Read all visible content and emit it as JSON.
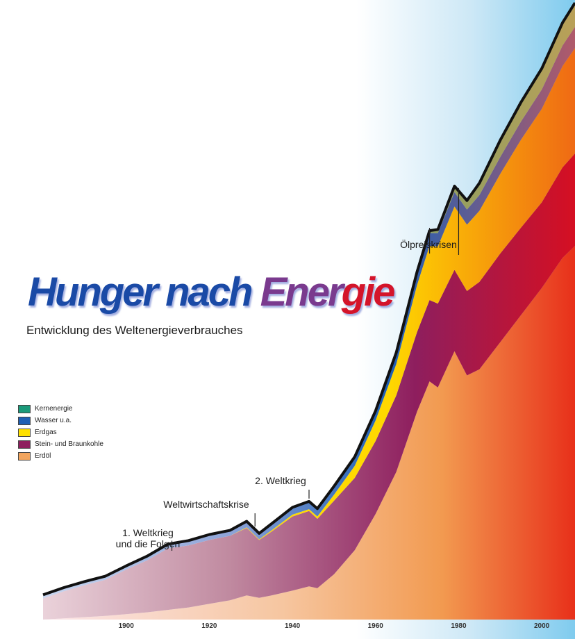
{
  "header": {
    "title_part1": "Hunger nach",
    "title_part2": "Ener",
    "title_part3": "gie",
    "subtitle": "Entwicklung des Weltenergieverbrauches"
  },
  "colors": {
    "sky": "#7fcbee",
    "kernenergie": "#1a9a7a",
    "wasser": "#1e5fb4",
    "erdgas": "#ffe100",
    "kohle": "#8e1e5e",
    "erdoel": "#f2a55e",
    "title_blue": "#1a4aa6",
    "title_red": "#d4142a"
  },
  "legend": [
    {
      "label": "Kernenergie",
      "color": "#1a9a7a"
    },
    {
      "label": "Wasser u.a.",
      "color": "#1e5fb4"
    },
    {
      "label": "Erdgas",
      "color": "#ffe100"
    },
    {
      "label": "Stein- und Braunkohle",
      "color": "#8e1e5e"
    },
    {
      "label": "Erdöl",
      "color": "#f2a55e"
    }
  ],
  "annotations": [
    {
      "lines": [
        "1. Weltkrieg",
        "und die Folgen"
      ],
      "year": 1911
    },
    {
      "lines": [
        "Weltwirtschaftskrise"
      ],
      "year": 1931
    },
    {
      "lines": [
        "2. Weltkrieg"
      ],
      "year": 1944
    },
    {
      "lines": [
        "Ölpreiskrisen"
      ],
      "year": 1973,
      "year2": 1980
    }
  ],
  "chart_data": {
    "type": "area",
    "stacked": true,
    "title": "Hunger nach Energie",
    "subtitle": "Entwicklung des Weltenergieverbrauches",
    "xlabel": "",
    "ylabel": "",
    "xlim": [
      1880,
      2008
    ],
    "ylim": [
      0,
      100
    ],
    "x_ticks": [
      1900,
      1920,
      1940,
      1960,
      1980,
      2000
    ],
    "x": [
      1880,
      1885,
      1890,
      1895,
      1900,
      1905,
      1910,
      1915,
      1920,
      1925,
      1929,
      1932,
      1935,
      1940,
      1944,
      1946,
      1950,
      1955,
      1960,
      1965,
      1970,
      1973,
      1975,
      1979,
      1982,
      1985,
      1990,
      1995,
      2000,
      2005,
      2008
    ],
    "series": [
      {
        "name": "Erdöl",
        "values": [
          0,
          0.2,
          0.4,
          0.6,
          0.9,
          1.2,
          1.6,
          2.0,
          2.6,
          3.2,
          4.0,
          3.6,
          4.0,
          4.8,
          5.5,
          5.2,
          7.5,
          11.5,
          17.5,
          24.5,
          34.5,
          39.5,
          38.5,
          44.5,
          40.5,
          41.5,
          46.0,
          50.5,
          55.0,
          60.0,
          62.0
        ]
      },
      {
        "name": "Stein- und Braunkohle",
        "values": [
          3.5,
          4.5,
          5.3,
          6.0,
          7.4,
          8.6,
          10.2,
          10.3,
          10.6,
          10.7,
          11.2,
          9.6,
          10.6,
          12.3,
          12.5,
          11.5,
          12.2,
          12.0,
          12.1,
          12.7,
          13.2,
          13.5,
          13.9,
          13.5,
          14.0,
          14.5,
          14.7,
          14.5,
          14.2,
          15.0,
          15.3
        ]
      },
      {
        "name": "Erdgas",
        "values": [
          0,
          0,
          0,
          0,
          0,
          0,
          0,
          0,
          0,
          0,
          0.1,
          0.1,
          0.2,
          0.3,
          0.3,
          0.4,
          1.0,
          2.0,
          3.4,
          5.2,
          7.8,
          9.0,
          9.5,
          10.5,
          11.0,
          11.8,
          13.2,
          14.6,
          15.5,
          16.8,
          17.5
        ]
      },
      {
        "name": "Wasser u.a.",
        "values": [
          0.6,
          0.6,
          0.6,
          0.6,
          0.6,
          0.7,
          0.7,
          0.8,
          0.9,
          0.9,
          1.0,
          1.0,
          1.1,
          1.2,
          1.3,
          1.3,
          1.4,
          1.5,
          1.6,
          1.8,
          2.0,
          2.1,
          2.2,
          2.4,
          2.5,
          2.6,
          2.8,
          3.0,
          3.2,
          3.4,
          3.5
        ]
      },
      {
        "name": "Kernenergie",
        "values": [
          0,
          0,
          0,
          0,
          0,
          0,
          0,
          0,
          0,
          0,
          0,
          0,
          0,
          0,
          0,
          0,
          0,
          0,
          0,
          0.1,
          0.2,
          0.4,
          0.6,
          1.0,
          1.5,
          2.0,
          2.8,
          3.2,
          3.5,
          3.8,
          4.0
        ]
      }
    ],
    "events": [
      "1. Weltkrieg und die Folgen",
      "Weltwirtschaftskrise",
      "2. Weltkrieg",
      "Ölpreiskrisen"
    ],
    "legend_position": "left",
    "grid": false
  }
}
